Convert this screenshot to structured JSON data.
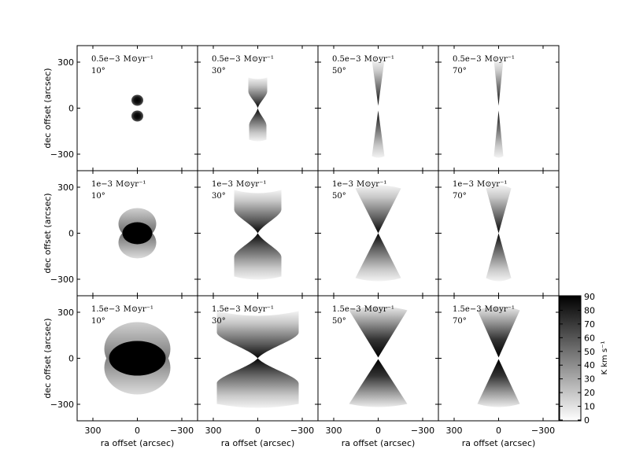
{
  "figure": {
    "xlabel": "ra offset (arcsec)",
    "ylabel": "dec offset (arcsec)",
    "x_ticks": [
      "300",
      "0",
      "−300"
    ],
    "y_ticks": [
      "300",
      "0",
      "−300"
    ],
    "row_labels": [
      {
        "rate": "0.5e−3",
        "unit": "M⊙yr⁻¹"
      },
      {
        "rate": "1e−3",
        "unit": "M⊙yr⁻¹"
      },
      {
        "rate": "1.5e−3",
        "unit": "M⊙yr⁻¹"
      }
    ],
    "col_labels": [
      "10°",
      "30°",
      "50°",
      "70°"
    ],
    "colorbar": {
      "label": "K  km  s⁻¹",
      "ticks": [
        "90",
        "80",
        "70",
        "60",
        "50",
        "40",
        "30",
        "20",
        "10",
        "0"
      ]
    }
  }
}
